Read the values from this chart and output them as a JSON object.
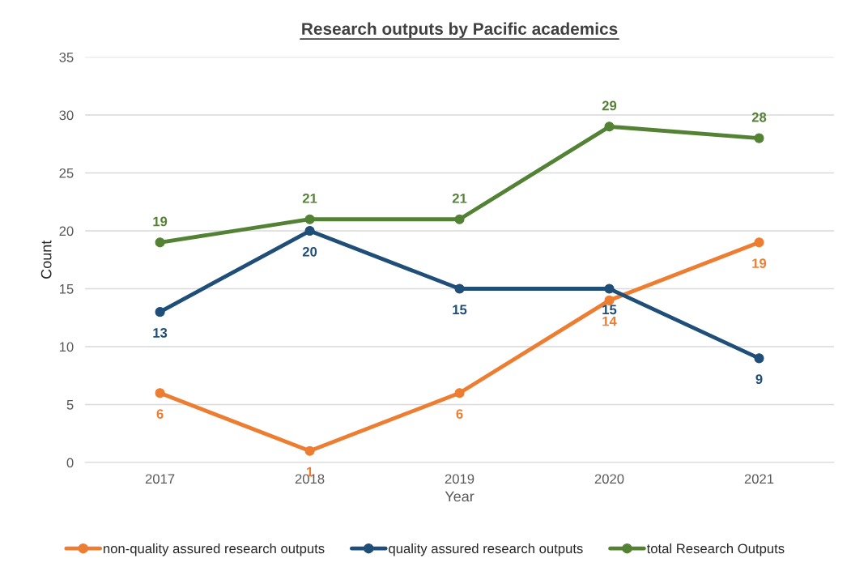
{
  "chart_data": {
    "type": "line",
    "title": "Research outputs by Pacific academics",
    "xlabel": "Year",
    "ylabel": "Count",
    "categories": [
      "2017",
      "2018",
      "2019",
      "2020",
      "2021"
    ],
    "series": [
      {
        "name": "non-quality assured research outputs",
        "color": "#ed7d31",
        "values": [
          6,
          1,
          6,
          14,
          19
        ]
      },
      {
        "name": "quality assured research outputs",
        "color": "#1f4e79",
        "values": [
          13,
          20,
          15,
          15,
          9
        ]
      },
      {
        "name": "total Research Outputs",
        "color": "#548235",
        "values": [
          19,
          21,
          21,
          29,
          28
        ]
      }
    ],
    "ylim": [
      0,
      35
    ],
    "yticks": [
      0,
      5,
      10,
      15,
      20,
      25,
      30,
      35
    ],
    "grid": "y",
    "legend": "bottom",
    "marker": "circle",
    "line_style": "solid",
    "data_labels": true
  }
}
